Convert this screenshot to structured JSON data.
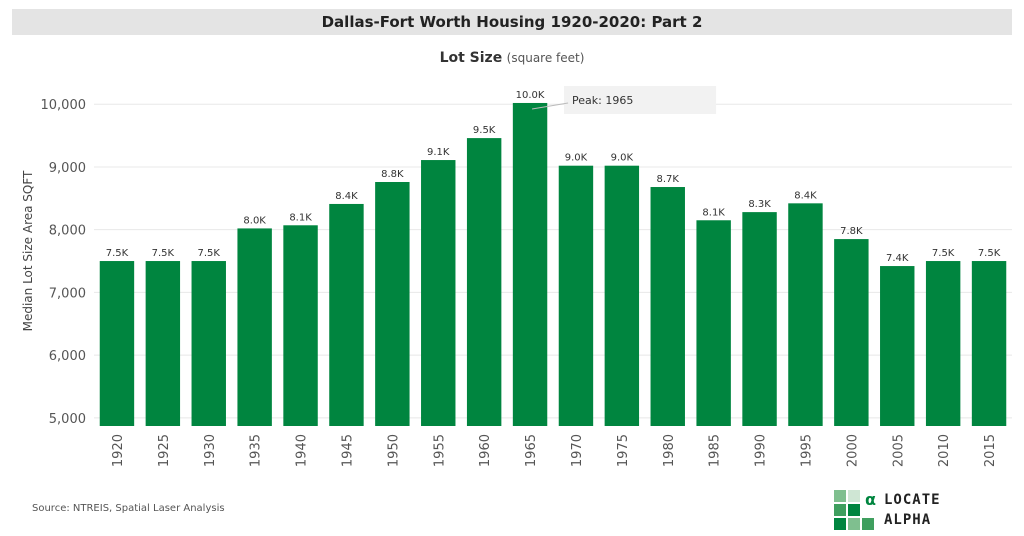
{
  "header": {
    "title": "Dallas-Fort Worth Housing 1920-2020: Part 2"
  },
  "chart_title": {
    "main": "Lot Size",
    "sub": "(square feet)"
  },
  "source": "Source: NTREIS, Spatial Laser Analysis",
  "logo": {
    "line1": "LOCATE",
    "line2": "ALPHA",
    "mark_glyph": "α"
  },
  "colors": {
    "bar": "#00853f",
    "grid": "#e8e8e8",
    "banner": "#e4e4e4"
  },
  "chart_data": {
    "type": "bar",
    "title": "Lot Size (square feet)",
    "ylabel": "Median Lot Size Area SQFT",
    "xlabel": "",
    "categories": [
      "1920",
      "1925",
      "1930",
      "1935",
      "1940",
      "1945",
      "1950",
      "1955",
      "1960",
      "1965",
      "1970",
      "1975",
      "1980",
      "1985",
      "1990",
      "1995",
      "2000",
      "2005",
      "2010",
      "2015"
    ],
    "values": [
      7500,
      7500,
      7500,
      8020,
      8070,
      8410,
      8760,
      9110,
      9460,
      10020,
      9020,
      9020,
      8680,
      8150,
      8280,
      8420,
      7850,
      7420,
      7500,
      7500
    ],
    "data_labels": [
      "7.5K",
      "7.5K",
      "7.5K",
      "8.0K",
      "8.1K",
      "8.4K",
      "8.8K",
      "9.1K",
      "9.5K",
      "10.0K",
      "9.0K",
      "9.0K",
      "8.7K",
      "8.1K",
      "8.3K",
      "8.4K",
      "7.8K",
      "7.4K",
      "7.5K",
      "7.5K"
    ],
    "ylim": [
      4870,
      10450
    ],
    "yticks": [
      5000,
      6000,
      7000,
      8000,
      9000,
      10000
    ],
    "ytick_labels": [
      "5,000",
      "6,000",
      "7,000",
      "8,000",
      "9,000",
      "10,000"
    ],
    "grid": true,
    "annotation": {
      "category": "1965",
      "text": "Peak: 1965"
    }
  }
}
